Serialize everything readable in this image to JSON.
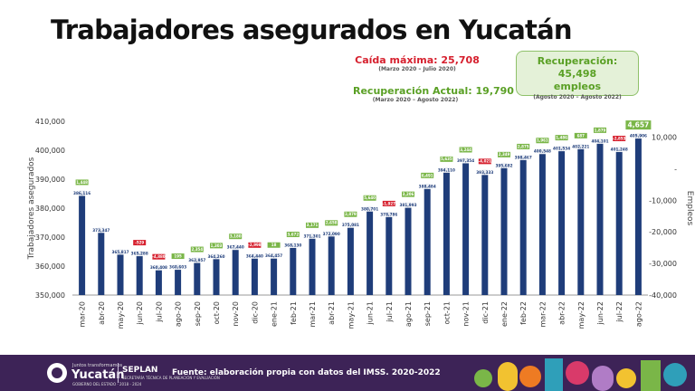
{
  "title": "Trabajadores asegurados en Yucatán",
  "annotations": {
    "max_drop_label": "Caída máxima:  25,708",
    "max_drop_period": "(Marzo 2020 – Julio 2020)",
    "current_recovery_label": "Recuperación Actual: 19,790",
    "current_recovery_period": "(Marzo 2020 – Agosto 2022)",
    "recovery_box_line1": "Recuperación: 45,498",
    "recovery_box_line2": "empleos",
    "recovery_box_period": "(Agosto 2020 – Agosto 2022)"
  },
  "colors": {
    "bar": "#1f3d7a",
    "positive": "#7ab648",
    "negative": "#d6202e",
    "title": "#111111",
    "footer": "#3d2357"
  },
  "chart_data": {
    "type": "bar",
    "ylabel": "Trabajadores asegurados",
    "y2label": "Empleos",
    "ylim": [
      350000,
      410000
    ],
    "yticks": [
      "350,000",
      "360,000",
      "370,000",
      "380,000",
      "390,000",
      "400,000",
      "410,000"
    ],
    "y2lim": [
      -40000,
      15000
    ],
    "y2ticks": [
      "-40,000",
      "-30,000",
      "-20,000",
      "-10,000",
      "-",
      "10,000"
    ],
    "categories": [
      "mar-20",
      "abr-20",
      "may-20",
      "jun-20",
      "jul-20",
      "ago-20",
      "sep-20",
      "oct-20",
      "nov-20",
      "dic-20",
      "ene-21",
      "feb-21",
      "mar-21",
      "abr-21",
      "may-21",
      "jun-21",
      "jul-21",
      "ago-21",
      "sep-21",
      "oct-21",
      "nov-21",
      "dic-21",
      "ene-22",
      "feb-22",
      "mar-22",
      "abr-22",
      "may-22",
      "jun-22",
      "jul-22",
      "ago-22"
    ],
    "series": [
      {
        "values": [
          386116,
          373347,
          365817,
          365288,
          360408,
          360603,
          362957,
          364260,
          367440,
          364440,
          364457,
          368130,
          371301,
          372090,
          375081,
          380701,
          378786,
          381993,
          388484,
          394110,
          397354,
          393333,
          395682,
          398467,
          400548,
          401534,
          402221,
          404101,
          401248,
          405906
        ],
        "labels": [
          "386,116",
          "373,347",
          "365,817",
          "365,288",
          "360,408",
          "360,603",
          "362,957",
          "364,260",
          "367,440",
          "364,440",
          "364,457",
          "368,130",
          "371,301",
          "372,090",
          "375,081",
          "380,701",
          "378,786",
          "381,993",
          "388,484",
          "394,110",
          "397,354",
          "393,333",
          "395,682",
          "398,467",
          "400,548",
          "401,534",
          "402,221",
          "404,101",
          "401,248",
          "405,906"
        ]
      },
      {
        "values": [
          1448,
          null,
          null,
          -529,
          -4880,
          195,
          2354,
          1303,
          3180,
          -2998,
          18,
          3672,
          3171,
          2658,
          2879,
          5640,
          -1927,
          3206,
          6491,
          5635,
          3244,
          -4021,
          2349,
          2875,
          1961,
          1486,
          687,
          1879,
          -2853,
          4657
        ],
        "labels": [
          "1,448",
          "",
          "",
          "-529",
          "-4,880",
          "195",
          "2,354",
          "1,303",
          "3,180",
          "-2,998",
          "18",
          "3,672",
          "3,171",
          "2,658",
          "2,879",
          "5,640",
          "-1,927",
          "3,206",
          "6,491",
          "5,635",
          "3,244",
          "-4,021",
          "2,349",
          "2,875",
          "1,961",
          "1,486",
          "687",
          "1,879",
          "-2,853",
          "4,657"
        ]
      }
    ]
  },
  "footer": {
    "logo_small": "Juntos transformamos",
    "logo_text": "Yucatán",
    "logo_tiny": "GOBIERNO DEL ESTADO · 2018 - 2024",
    "seplan": "SEPLAN",
    "seplan_sub": "SECRETARÍA TÉCNICA DE PLANEACIÓN Y EVALUACIÓN",
    "source": "Fuente: elaboración propia con datos del IMSS. 2020-2022"
  }
}
